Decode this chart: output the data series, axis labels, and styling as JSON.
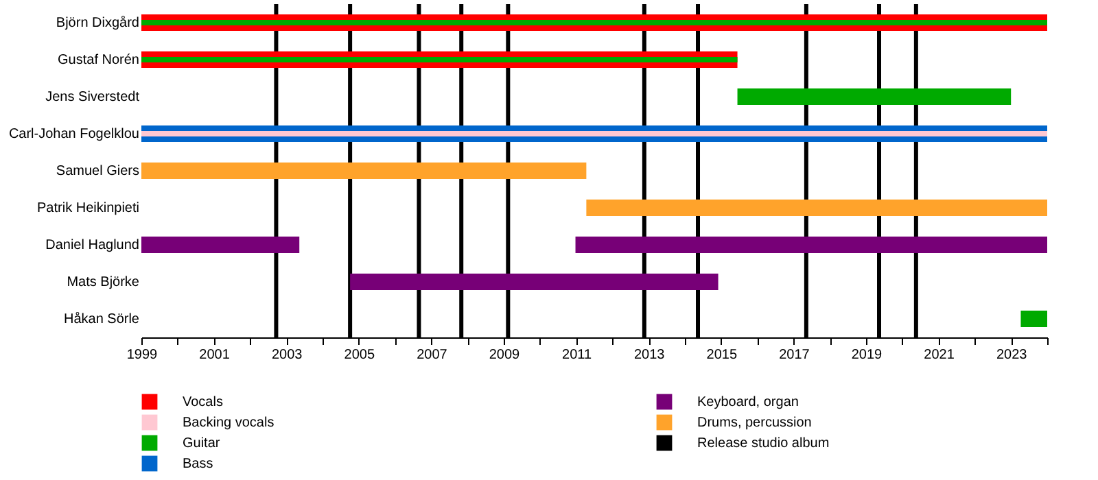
{
  "chart_data": {
    "type": "bar",
    "orientation": "horizontal",
    "legend": "bottom",
    "grid": false,
    "categories": [
      "Björn Dixgård",
      "Gustaf Norén",
      "Jens Siverstedt",
      "Carl-Johan Fogelklou",
      "Samuel Giers",
      "Patrik Heikinpieti",
      "Daniel Haglund",
      "Mats Björke",
      "Håkan Sörle"
    ],
    "xlim": [
      1999,
      2024
    ],
    "xticks": [
      1999,
      {
        "value": 2000,
        "label": null
      },
      2001,
      {
        "value": 2002,
        "label": null
      },
      2003,
      {
        "value": 2004,
        "label": null
      },
      2005,
      {
        "value": 2006,
        "label": null
      },
      2007,
      {
        "value": 2008,
        "label": null
      },
      2009,
      {
        "value": 2010,
        "label": null
      },
      2011,
      {
        "value": 2012,
        "label": null
      },
      2013,
      {
        "value": 2014,
        "label": null
      },
      2015,
      {
        "value": 2016,
        "label": null
      },
      2017,
      {
        "value": 2018,
        "label": null
      },
      2019,
      {
        "value": 2020,
        "label": null
      },
      2021,
      {
        "value": 2022,
        "label": null
      },
      2023,
      {
        "value": 2024,
        "label": null
      }
    ],
    "series": [
      {
        "name": "Vocals",
        "color": "#ff0000",
        "base": [
          1999,
          1999,
          null,
          null,
          null,
          null,
          null,
          null,
          null
        ],
        "values": [
          25,
          16.45,
          null,
          null,
          null,
          null,
          null,
          null,
          null
        ]
      },
      {
        "name": "Backing vocals",
        "color": "#ffc8d2",
        "base": [
          null,
          null,
          null,
          1999,
          null,
          null,
          null,
          null,
          null
        ],
        "values": [
          null,
          null,
          null,
          25,
          null,
          null,
          null,
          null,
          null
        ]
      },
      {
        "name": "Guitar",
        "color": "#00aa00",
        "base": [
          1999,
          1999,
          2015.45,
          null,
          null,
          null,
          null,
          null,
          2023.27
        ],
        "values": [
          25,
          16.45,
          7.55,
          null,
          null,
          null,
          null,
          null,
          0.73
        ]
      },
      {
        "name": "Bass",
        "color": "#0066cc",
        "base": [
          null,
          null,
          null,
          1999,
          null,
          null,
          null,
          null,
          null
        ],
        "values": [
          null,
          null,
          null,
          25,
          null,
          null,
          null,
          null,
          null
        ]
      },
      {
        "name": "Keyboard, organ",
        "color": "#770077",
        "base": [
          null,
          null,
          null,
          null,
          null,
          null,
          1999,
          2004.76,
          null
        ],
        "values": [
          null,
          null,
          null,
          null,
          null,
          null,
          4.36,
          10.16,
          null
        ]
      },
      {
        "color": "#770077",
        "base": [
          null,
          null,
          null,
          null,
          null,
          null,
          2010.98,
          null,
          null
        ],
        "values": [
          null,
          null,
          null,
          null,
          null,
          null,
          13.02,
          null,
          null
        ]
      },
      {
        "name": "Drums, percussion",
        "color": "#ffa32b",
        "base": [
          null,
          null,
          null,
          null,
          1999,
          2011.28,
          null,
          null,
          null
        ],
        "values": [
          null,
          null,
          null,
          null,
          12.28,
          12.72,
          null,
          null,
          null
        ]
      }
    ],
    "ref_lines": [
      {
        "axis": "x",
        "value": 2002.72,
        "label": "Release studio album",
        "color": "#000000"
      },
      {
        "axis": "x",
        "value": 2004.76,
        "label": null,
        "color": "#000000"
      },
      {
        "axis": "x",
        "value": 2006.66,
        "label": null,
        "color": "#000000"
      },
      {
        "axis": "x",
        "value": 2007.83,
        "label": null,
        "color": "#000000"
      },
      {
        "axis": "x",
        "value": 2009.12,
        "label": null,
        "color": "#000000"
      },
      {
        "axis": "x",
        "value": 2012.88,
        "label": null,
        "color": "#000000"
      },
      {
        "axis": "x",
        "value": 2014.36,
        "label": null,
        "color": "#000000"
      },
      {
        "axis": "x",
        "value": 2017.35,
        "label": null,
        "color": "#000000"
      },
      {
        "axis": "x",
        "value": 2019.36,
        "label": null,
        "color": "#000000"
      },
      {
        "axis": "x",
        "value": 2020.38,
        "label": null,
        "color": "#000000"
      }
    ]
  }
}
